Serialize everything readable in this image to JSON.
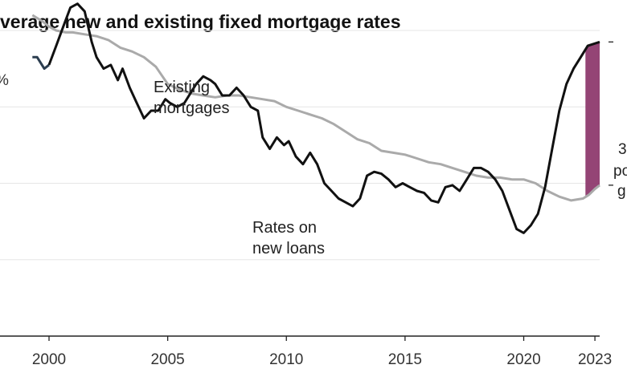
{
  "title": "verage new and existing fixed mortgage rates",
  "chart_data": {
    "type": "line",
    "title": "verage new and existing fixed mortgage rates",
    "xlabel": "",
    "ylabel": "",
    "xlim": [
      1999.0,
      2023.2
    ],
    "ylim": [
      0,
      8
    ],
    "x_ticks": [
      2000,
      2005,
      2010,
      2015,
      2020,
      2023
    ],
    "x_tick_labels": [
      "2000",
      "2005",
      "2010",
      "2015",
      "2020",
      "2023"
    ],
    "y_gridlines": [
      2,
      4,
      6,
      8
    ],
    "partial_y_label": "%",
    "grid": true,
    "series": [
      {
        "name": "Existing mortgages",
        "color": "#aaaaaa",
        "x": [
          1999.3,
          1999.7,
          2000.0,
          2000.3,
          2000.7,
          2001.0,
          2001.5,
          2002.0,
          2002.5,
          2003.0,
          2003.5,
          2004.0,
          2004.5,
          2005.0,
          2005.5,
          2006.0,
          2006.5,
          2007.0,
          2007.5,
          2008.0,
          2008.5,
          2009.0,
          2009.5,
          2010.0,
          2010.5,
          2011.0,
          2011.5,
          2012.0,
          2012.5,
          2013.0,
          2013.5,
          2014.0,
          2014.5,
          2015.0,
          2015.5,
          2016.0,
          2016.5,
          2017.0,
          2017.5,
          2018.0,
          2018.5,
          2019.0,
          2019.5,
          2020.0,
          2020.5,
          2021.0,
          2021.5,
          2022.0,
          2022.5,
          2022.75,
          2023.0,
          2023.2
        ],
        "values": [
          8.4,
          8.25,
          8.1,
          8.0,
          7.95,
          7.95,
          7.9,
          7.85,
          7.75,
          7.55,
          7.45,
          7.3,
          7.05,
          6.6,
          6.45,
          6.35,
          6.3,
          6.25,
          6.3,
          6.3,
          6.25,
          6.2,
          6.15,
          6.0,
          5.9,
          5.8,
          5.7,
          5.55,
          5.35,
          5.15,
          5.05,
          4.85,
          4.8,
          4.75,
          4.65,
          4.55,
          4.5,
          4.4,
          4.3,
          4.2,
          4.15,
          4.15,
          4.1,
          4.1,
          4.0,
          3.8,
          3.65,
          3.55,
          3.6,
          3.7,
          3.85,
          3.95
        ]
      },
      {
        "name": "Rates on new loans",
        "color": "#111111",
        "x": [
          1999.3,
          1999.5,
          1999.8,
          2000.0,
          2000.3,
          2000.6,
          2000.9,
          2001.2,
          2001.5,
          2001.8,
          2002.0,
          2002.3,
          2002.6,
          2002.9,
          2003.1,
          2003.4,
          2003.7,
          2004.0,
          2004.3,
          2004.6,
          2004.9,
          2005.1,
          2005.4,
          2005.7,
          2006.0,
          2006.2,
          2006.5,
          2006.8,
          2007.0,
          2007.3,
          2007.6,
          2007.9,
          2008.2,
          2008.5,
          2008.8,
          2009.0,
          2009.3,
          2009.6,
          2009.9,
          2010.1,
          2010.4,
          2010.7,
          2011.0,
          2011.3,
          2011.6,
          2011.9,
          2012.2,
          2012.5,
          2012.8,
          2013.1,
          2013.4,
          2013.7,
          2014.0,
          2014.3,
          2014.6,
          2014.9,
          2015.2,
          2015.5,
          2015.8,
          2016.1,
          2016.4,
          2016.7,
          2017.0,
          2017.3,
          2017.6,
          2017.9,
          2018.2,
          2018.5,
          2018.8,
          2019.1,
          2019.4,
          2019.7,
          2020.0,
          2020.3,
          2020.6,
          2020.9,
          2021.2,
          2021.5,
          2021.8,
          2022.1,
          2022.4,
          2022.7,
          2023.2
        ],
        "values": [
          7.3,
          7.3,
          7.0,
          7.1,
          7.6,
          8.1,
          8.6,
          8.7,
          8.5,
          7.7,
          7.3,
          7.0,
          7.1,
          6.7,
          7.0,
          6.5,
          6.1,
          5.7,
          5.9,
          5.9,
          6.2,
          6.1,
          6.0,
          6.1,
          6.4,
          6.6,
          6.8,
          6.7,
          6.6,
          6.3,
          6.3,
          6.5,
          6.3,
          6.0,
          5.9,
          5.2,
          4.9,
          5.2,
          5.0,
          5.1,
          4.7,
          4.5,
          4.8,
          4.5,
          4.0,
          3.8,
          3.6,
          3.5,
          3.4,
          3.6,
          4.2,
          4.3,
          4.25,
          4.1,
          3.9,
          4.0,
          3.9,
          3.8,
          3.75,
          3.55,
          3.5,
          3.9,
          3.95,
          3.8,
          4.1,
          4.4,
          4.4,
          4.3,
          4.1,
          3.8,
          3.3,
          2.8,
          2.7,
          2.9,
          3.2,
          3.9,
          4.9,
          5.9,
          6.6,
          7.0,
          7.3,
          7.6,
          7.7
        ]
      }
    ],
    "annotations": {
      "gap_label_lines": [
        "3",
        "po",
        "g"
      ],
      "gap_fill_color": "#8e3a6e"
    }
  }
}
